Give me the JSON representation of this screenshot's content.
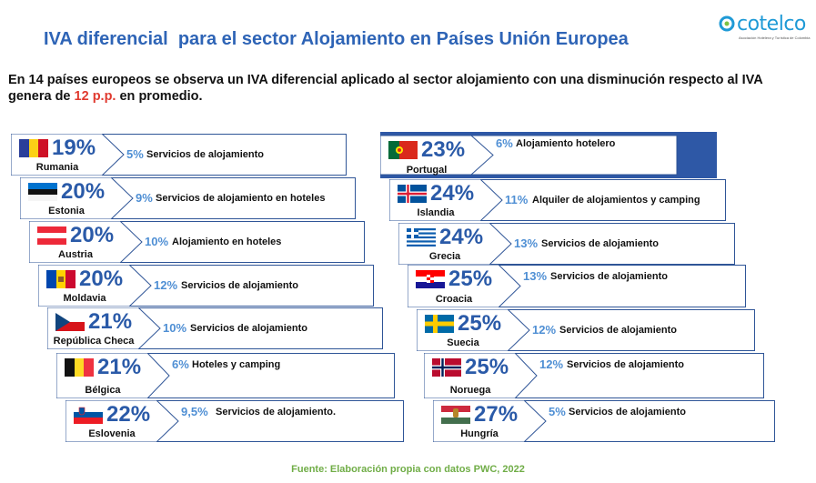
{
  "title": "IVA diferencial  para el sector Alojamiento en Países Unión Europea",
  "logo": {
    "name": "cotelco",
    "tagline": "Asociación Hotelera y Turística de Colombia"
  },
  "intro": {
    "part1": "En 14 países europeos se observa un IVA  diferencial aplicado al sector alojamiento con una disminución respecto al IVA genera de ",
    "highlight": "12 p.p.",
    "part2": " en promedio."
  },
  "left": [
    {
      "country": "Rumania",
      "pct": "19%",
      "rate": "5%",
      "desc": "Servicios de alojamiento",
      "flag": "romania-flag"
    },
    {
      "country": "Estonia",
      "pct": "20%",
      "rate": "9%",
      "desc": "Servicios de alojamiento en hoteles",
      "flag": "estonia-flag"
    },
    {
      "country": "Austria",
      "pct": "20%",
      "rate": "10%",
      "desc": "Alojamiento en hoteles",
      "flag": "austria-flag"
    },
    {
      "country": "Moldavia",
      "pct": "20%",
      "rate": "12%",
      "desc": "Servicios de alojamiento",
      "flag": "moldova-flag"
    },
    {
      "country": "República Checa",
      "pct": "21%",
      "rate": "10%",
      "desc": "Servicios de alojamiento",
      "flag": "czech-flag"
    },
    {
      "country": "Bélgica",
      "pct": "21%",
      "rate": "6%",
      "desc": "Hoteles y camping",
      "flag": "belgium-flag"
    },
    {
      "country": "Eslovenia",
      "pct": "22%",
      "rate": "9,5%",
      "desc": "Servicios de alojamiento.",
      "flag": "slovenia-flag"
    }
  ],
  "right": [
    {
      "country": "Portugal",
      "pct": "23%",
      "rate": "6%",
      "desc": "Alojamiento hotelero",
      "flag": "portugal-flag"
    },
    {
      "country": "Islandia",
      "pct": "24%",
      "rate": "11%",
      "desc": "Alquiler de alojamientos y camping",
      "flag": "iceland-flag"
    },
    {
      "country": "Grecia",
      "pct": "24%",
      "rate": "13%",
      "desc": "Servicios de alojamiento",
      "flag": "greece-flag"
    },
    {
      "country": "Croacia",
      "pct": "25%",
      "rate": "13%",
      "desc": "Servicios de alojamiento",
      "flag": "croatia-flag"
    },
    {
      "country": "Suecia",
      "pct": "25%",
      "rate": "12%",
      "desc": "Servicios de alojamiento",
      "flag": "sweden-flag"
    },
    {
      "country": "Noruega",
      "pct": "25%",
      "rate": "12%",
      "desc": "Servicios de alojamiento",
      "flag": "norway-flag"
    },
    {
      "country": "Hungría",
      "pct": "27%",
      "rate": "5%",
      "desc": "Servicios de alojamiento",
      "flag": "hungary-flag"
    }
  ],
  "source": "Fuente: Elaboración propia con datos PWC, 2022",
  "colors": {
    "title": "#2e64b6",
    "highlight": "#e03a2f",
    "rate": "#4f8fd4",
    "source": "#70ad47",
    "panel": "#2e58a6"
  }
}
